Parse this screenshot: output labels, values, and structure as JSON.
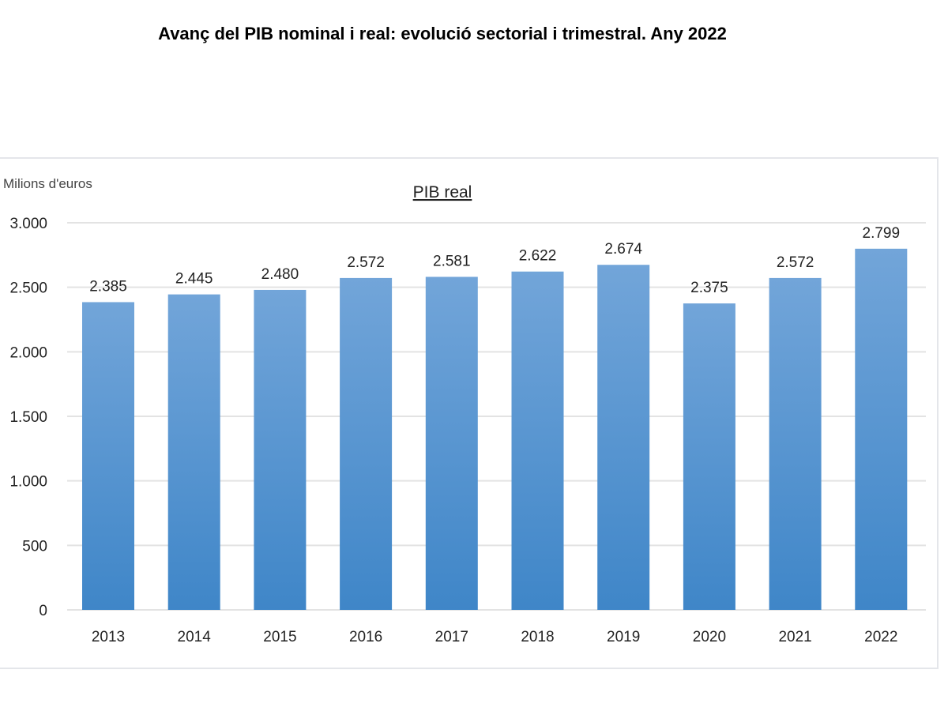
{
  "title": "Avanç del PIB nominal i real: evolució sectorial i trimestral. Any 2022",
  "chart_data": {
    "type": "bar",
    "title": "PIB real",
    "ylabel": "Milions d'euros",
    "xlabel": "",
    "categories": [
      "2013",
      "2014",
      "2015",
      "2016",
      "2017",
      "2018",
      "2019",
      "2020",
      "2021",
      "2022"
    ],
    "values": [
      2385,
      2445,
      2480,
      2572,
      2581,
      2622,
      2674,
      2375,
      2572,
      2799
    ],
    "value_labels": [
      "2.385",
      "2.445",
      "2.480",
      "2.572",
      "2.581",
      "2.622",
      "2.674",
      "2.375",
      "2.572",
      "2.799"
    ],
    "yticks": [
      0,
      500,
      1000,
      1500,
      2000,
      2500,
      3000
    ],
    "ytick_labels": [
      "0",
      "500",
      "1.000",
      "1.500",
      "2.000",
      "2.500",
      "3.000"
    ],
    "ylim": [
      0,
      3000
    ],
    "grid": true,
    "colors": {
      "bar_top": "#72a5d9",
      "bar_bottom": "#3f86c8",
      "grid": "#e3e3e3"
    }
  }
}
